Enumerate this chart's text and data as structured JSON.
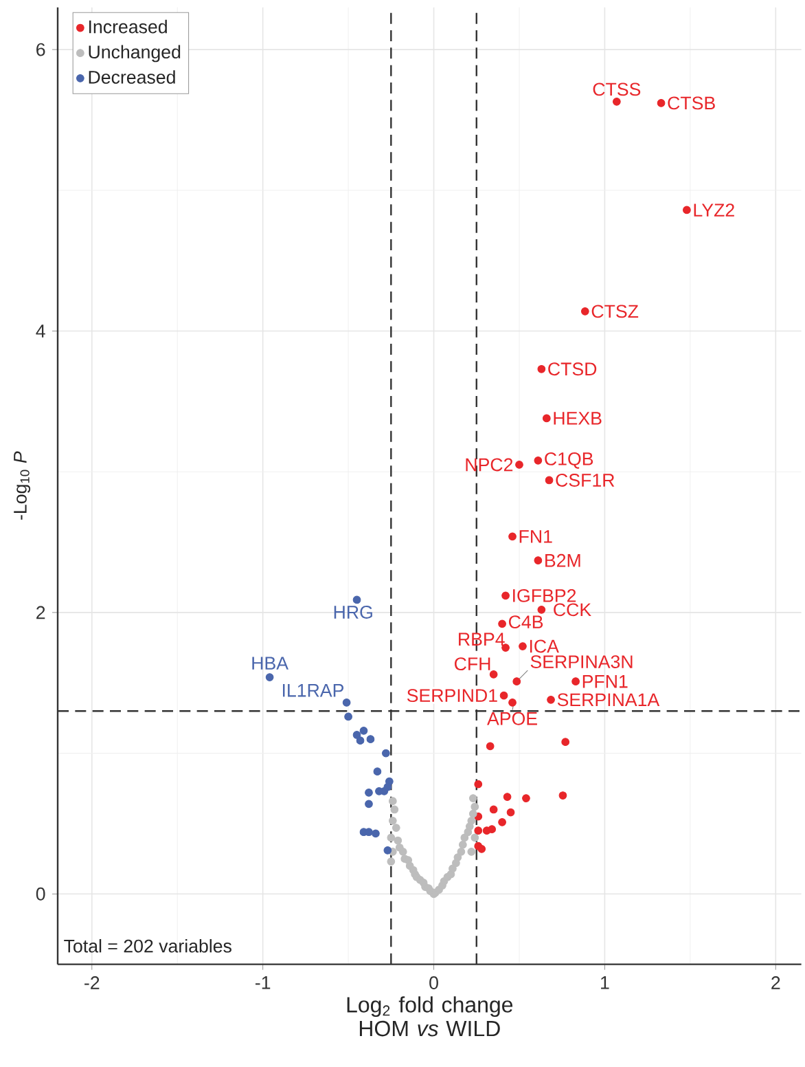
{
  "chart_data": {
    "type": "scatter",
    "xlabel": "Log$_{2}$ fold change HOM *vs* WILD",
    "ylabel": "-Log$_{10}$ *P*",
    "xlim": [
      -2.2,
      2.15
    ],
    "ylim": [
      -0.5,
      6.3
    ],
    "xticks": [
      -2,
      -1,
      0,
      1,
      2
    ],
    "yticks": [
      0,
      2,
      4,
      6
    ],
    "grid": true,
    "legend": "top left",
    "marker": "circle",
    "series": [
      {
        "name": "Increased",
        "color": "#e8262a",
        "x": [
          1.07,
          1.33,
          1.48,
          0.885,
          0.63,
          0.66,
          0.61,
          0.5,
          0.675,
          0.46,
          0.61,
          0.42,
          0.63,
          0.4,
          0.42,
          0.52,
          0.35,
          0.485,
          0.83,
          0.41,
          0.685,
          0.46,
          0.77,
          0.33,
          0.26,
          0.54,
          0.755,
          0.43,
          0.35,
          0.45,
          0.26,
          0.4,
          0.31,
          0.34,
          0.26,
          0.26,
          0.28
        ],
        "values": [
          5.63,
          5.62,
          4.86,
          4.14,
          3.73,
          3.38,
          3.08,
          3.05,
          2.94,
          2.54,
          2.37,
          2.12,
          2.02,
          1.92,
          1.75,
          1.76,
          1.56,
          1.51,
          1.51,
          1.41,
          1.38,
          1.36,
          1.08,
          1.05,
          0.78,
          0.68,
          0.7,
          0.69,
          0.6,
          0.58,
          0.55,
          0.51,
          0.45,
          0.46,
          0.45,
          0.34,
          0.32
        ]
      },
      {
        "name": "Unchanged",
        "color": "#bdbdbd",
        "x": [
          -0.24,
          -0.23,
          -0.24,
          -0.22,
          -0.25,
          -0.21,
          -0.24,
          -0.2,
          -0.25,
          -0.18,
          -0.17,
          -0.15,
          -0.14,
          -0.12,
          -0.11,
          -0.1,
          -0.08,
          -0.06,
          -0.05,
          -0.03,
          -0.02,
          0.0,
          0.01,
          0.03,
          0.05,
          0.06,
          0.08,
          0.1,
          0.11,
          0.13,
          0.14,
          0.16,
          0.17,
          0.18,
          0.2,
          0.21,
          0.22,
          0.23,
          0.24,
          0.23,
          0.24,
          0.22
        ],
        "values": [
          0.66,
          0.6,
          0.52,
          0.47,
          0.4,
          0.38,
          0.3,
          0.33,
          0.23,
          0.3,
          0.25,
          0.24,
          0.2,
          0.17,
          0.14,
          0.12,
          0.1,
          0.08,
          0.05,
          0.04,
          0.02,
          0.0,
          0.01,
          0.03,
          0.06,
          0.09,
          0.12,
          0.14,
          0.18,
          0.22,
          0.26,
          0.3,
          0.35,
          0.4,
          0.44,
          0.48,
          0.52,
          0.57,
          0.62,
          0.68,
          0.4,
          0.3
        ]
      },
      {
        "name": "Decreased",
        "color": "#4a66ac",
        "x": [
          -0.45,
          -0.96,
          -0.51,
          -0.5,
          -0.45,
          -0.41,
          -0.43,
          -0.37,
          -0.28,
          -0.33,
          -0.26,
          -0.29,
          -0.38,
          -0.27,
          -0.32,
          -0.38,
          -0.41,
          -0.38,
          -0.34,
          -0.27
        ],
        "values": [
          2.09,
          1.54,
          1.36,
          1.26,
          1.13,
          1.16,
          1.09,
          1.1,
          1.0,
          0.87,
          0.8,
          0.73,
          0.72,
          0.76,
          0.73,
          0.64,
          0.44,
          0.44,
          0.43,
          0.31
        ]
      }
    ],
    "ref_lines": [
      {
        "axis": "x",
        "value": -0.25,
        "line_style": "dashed"
      },
      {
        "axis": "x",
        "value": 0.25,
        "line_style": "dashed"
      },
      {
        "axis": "y",
        "value": 1.3,
        "line_style": "dashed"
      }
    ],
    "annotations": [
      {
        "text": "CTSS",
        "x": 1.07,
        "y": 5.63
      },
      {
        "text": "CTSB",
        "x": 1.33,
        "y": 5.62
      },
      {
        "text": "LYZ2",
        "x": 1.48,
        "y": 4.86
      },
      {
        "text": "CTSZ",
        "x": 0.885,
        "y": 4.14
      },
      {
        "text": "CTSD",
        "x": 0.63,
        "y": 3.73
      },
      {
        "text": "HEXB",
        "x": 0.66,
        "y": 3.38
      },
      {
        "text": "C1QB",
        "x": 0.61,
        "y": 3.08
      },
      {
        "text": "NPC2",
        "x": 0.5,
        "y": 3.05
      },
      {
        "text": "CSF1R",
        "x": 0.675,
        "y": 2.94
      },
      {
        "text": "FN1",
        "x": 0.46,
        "y": 2.54
      },
      {
        "text": "B2M",
        "x": 0.61,
        "y": 2.37
      },
      {
        "text": "IGFBP2",
        "x": 0.42,
        "y": 2.12
      },
      {
        "text": "CCK",
        "x": 0.63,
        "y": 2.02
      },
      {
        "text": "C4B",
        "x": 0.4,
        "y": 1.92
      },
      {
        "text": "RBP4",
        "x": 0.42,
        "y": 1.75
      },
      {
        "text": "ICA",
        "x": 0.52,
        "y": 1.76
      },
      {
        "text": "CFH",
        "x": 0.35,
        "y": 1.56
      },
      {
        "text": "SERPINA3N",
        "x": 0.485,
        "y": 1.51
      },
      {
        "text": "PFN1",
        "x": 0.83,
        "y": 1.51
      },
      {
        "text": "SERPIND1",
        "x": 0.41,
        "y": 1.41
      },
      {
        "text": "SERPINA1A",
        "x": 0.685,
        "y": 1.38
      },
      {
        "text": "APOE",
        "x": 0.46,
        "y": 1.36
      },
      {
        "text": "HRG",
        "x": -0.45,
        "y": 2.09
      },
      {
        "text": "HBA",
        "x": -0.96,
        "y": 1.54
      },
      {
        "text": "IL1RAP",
        "x": -0.51,
        "y": 1.36
      },
      "Total = 202 variables"
    ]
  }
}
